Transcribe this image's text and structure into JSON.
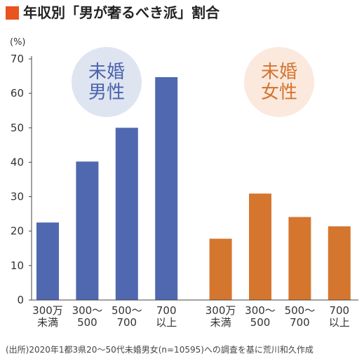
{
  "chart_data": {
    "type": "bar",
    "title": "年収別「男が奢るべき派」割合",
    "y_unit": "(%)",
    "source": "(出所)2020年1都3県20～50代未婚男女(n=10595)への調査を基に荒川和久作成",
    "categories": [
      "300万\n未満",
      "300～\n500",
      "500～\n700",
      "700\n以上",
      "300万\n未満",
      "300～\n500",
      "500～\n700",
      "700\n以上"
    ],
    "series": [
      {
        "name": "未婚\n男性",
        "color": "#5068b0",
        "label_color": "#4a64ad",
        "bubble_color": "#dfe4f1",
        "values": [
          22.5,
          40.2,
          50,
          64.7,
          null,
          null,
          null,
          null
        ]
      },
      {
        "name": "未婚\n女性",
        "color": "#d5762f",
        "label_color": "#d5752f",
        "bubble_color": "#fbe9de",
        "values": [
          null,
          null,
          null,
          null,
          17.8,
          30.9,
          24.1,
          21.4
        ]
      }
    ],
    "ylim": [
      0,
      70
    ],
    "yticks": [
      0,
      10,
      20,
      30,
      40,
      50,
      60,
      70
    ],
    "grid": false
  }
}
